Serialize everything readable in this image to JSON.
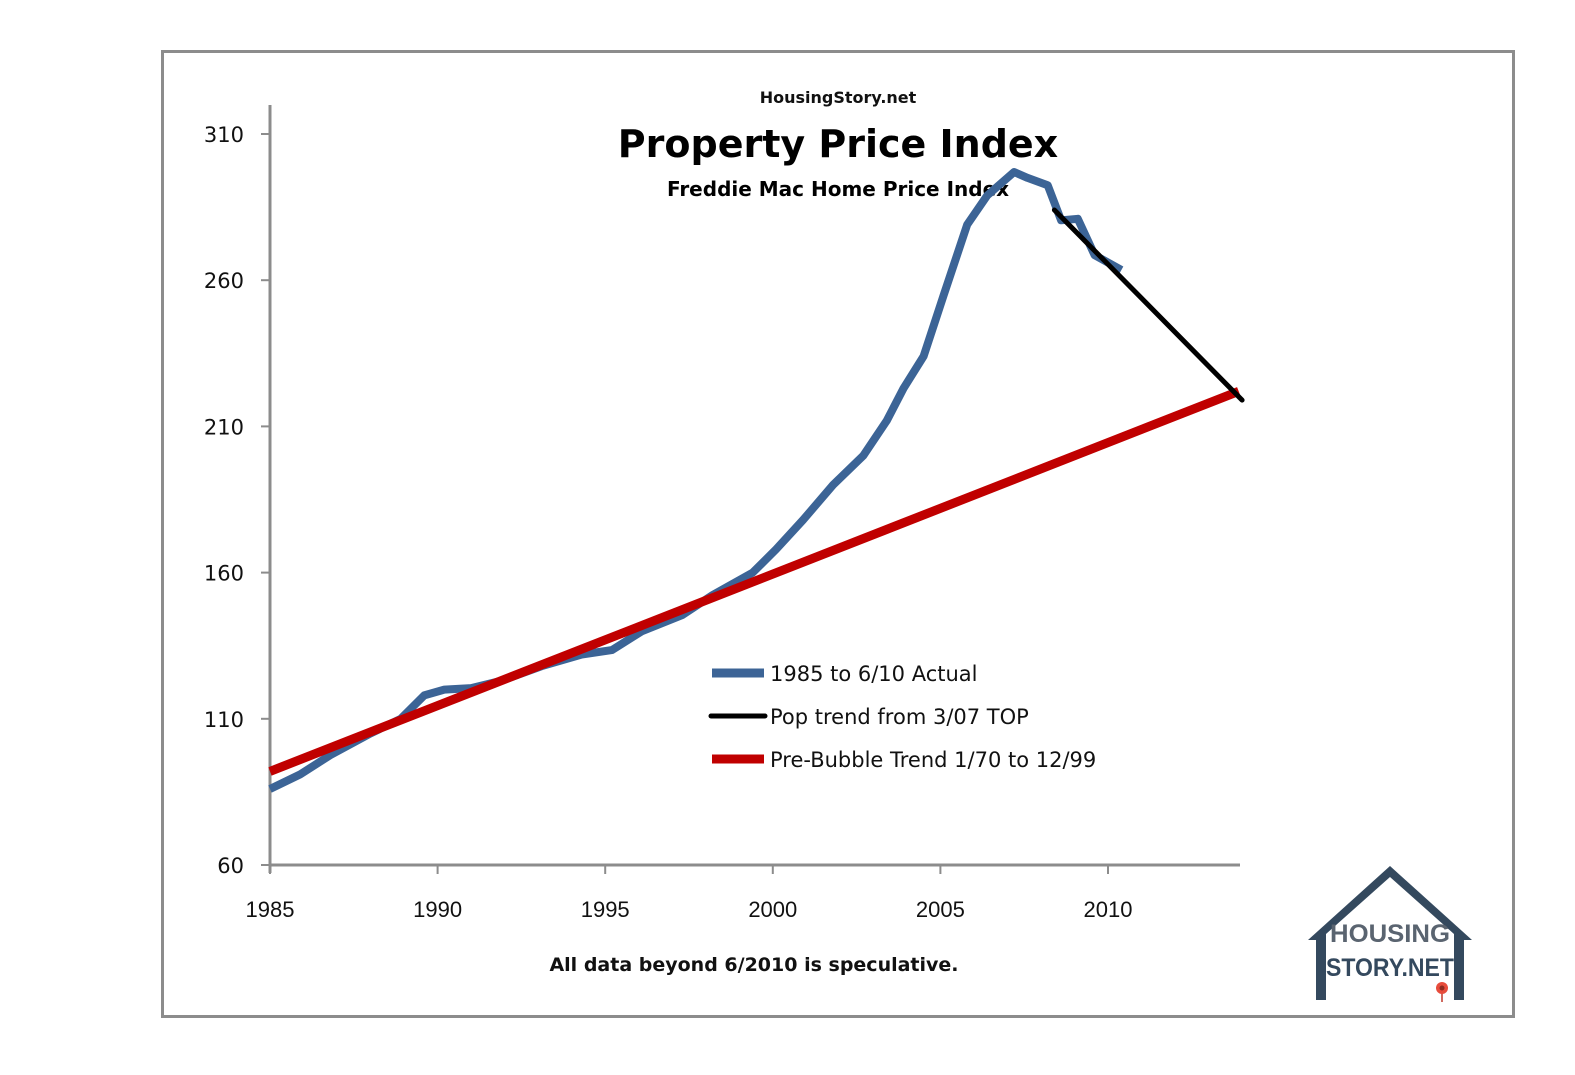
{
  "chart_data": {
    "type": "line",
    "site": "HousingStory.net",
    "title": "Property Price Index",
    "subtitle": "Freddie Mac Home Price Index",
    "footnote": "All data beyond 6/2010 is speculative.",
    "xlabel": "",
    "ylabel": "",
    "xlim": [
      1985,
      2014
    ],
    "ylim": [
      60,
      310
    ],
    "x_ticks": [
      1985,
      1990,
      1995,
      2000,
      2005,
      2010
    ],
    "x_tick_labels": [
      "1985",
      "1990",
      "1995",
      "2000",
      "2005",
      "2010"
    ],
    "y_ticks": [
      60,
      110,
      160,
      210,
      260,
      310
    ],
    "y_tick_labels": [
      "60",
      "110",
      "160",
      "210",
      "260",
      "310"
    ],
    "grid": false,
    "legend_position": "center-right",
    "series": [
      {
        "name": "1985 to 6/10 Actual",
        "color": "#3c6496",
        "x": [
          1985.0,
          1985.9,
          1986.8,
          1988.0,
          1988.9,
          1989.6,
          1990.2,
          1991.0,
          1991.9,
          1993.1,
          1994.3,
          1995.2,
          1996.1,
          1997.3,
          1998.2,
          1999.4,
          2000.1,
          2000.9,
          2001.8,
          2002.7,
          2003.4,
          2003.9,
          2004.5,
          2005.1,
          2005.8,
          2006.4,
          2007.2,
          2007.6,
          2008.2,
          2008.6,
          2009.1,
          2009.6,
          2010.4
        ],
        "values": [
          86,
          91,
          97.6,
          105,
          110,
          118,
          120,
          120.5,
          123,
          128,
          132,
          133.5,
          140,
          145.5,
          152.3,
          160,
          168,
          178,
          190,
          200,
          212,
          223,
          234,
          255,
          279,
          289,
          297,
          295,
          292.5,
          280.5,
          281,
          268.6,
          263.5
        ]
      },
      {
        "name": "Pop trend from 3/07 TOP",
        "color": "#000000",
        "x": [
          2008.4,
          2014.0
        ],
        "values": [
          284,
          219
        ]
      },
      {
        "name": "Pre-Bubble Trend 1/70 to 12/99",
        "color": "#c00000",
        "x": [
          1985.0,
          2013.9
        ],
        "values": [
          92,
          222
        ]
      }
    ]
  },
  "logo": {
    "line1": "HOUSING",
    "line2": "STORY.NET",
    "color": "#34495e"
  }
}
